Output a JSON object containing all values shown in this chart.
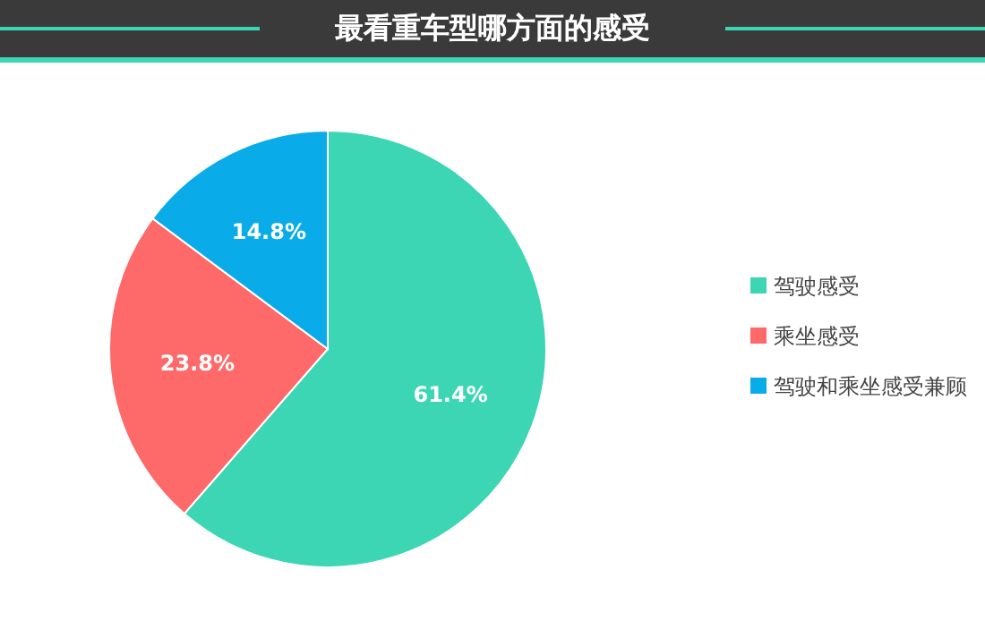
{
  "chart_data": {
    "type": "pie",
    "title": "最看重车型哪方面的感受",
    "categories": [
      "驾驶感受",
      "乘坐感受",
      "驾驶和乘坐感受兼顾"
    ],
    "values": [
      61.4,
      23.8,
      14.8
    ],
    "value_labels": [
      "61.4%",
      "23.8%",
      "14.8%"
    ],
    "colors": [
      "#3dd6b5",
      "#fe6a6a",
      "#09abe9"
    ],
    "legend": "right"
  }
}
